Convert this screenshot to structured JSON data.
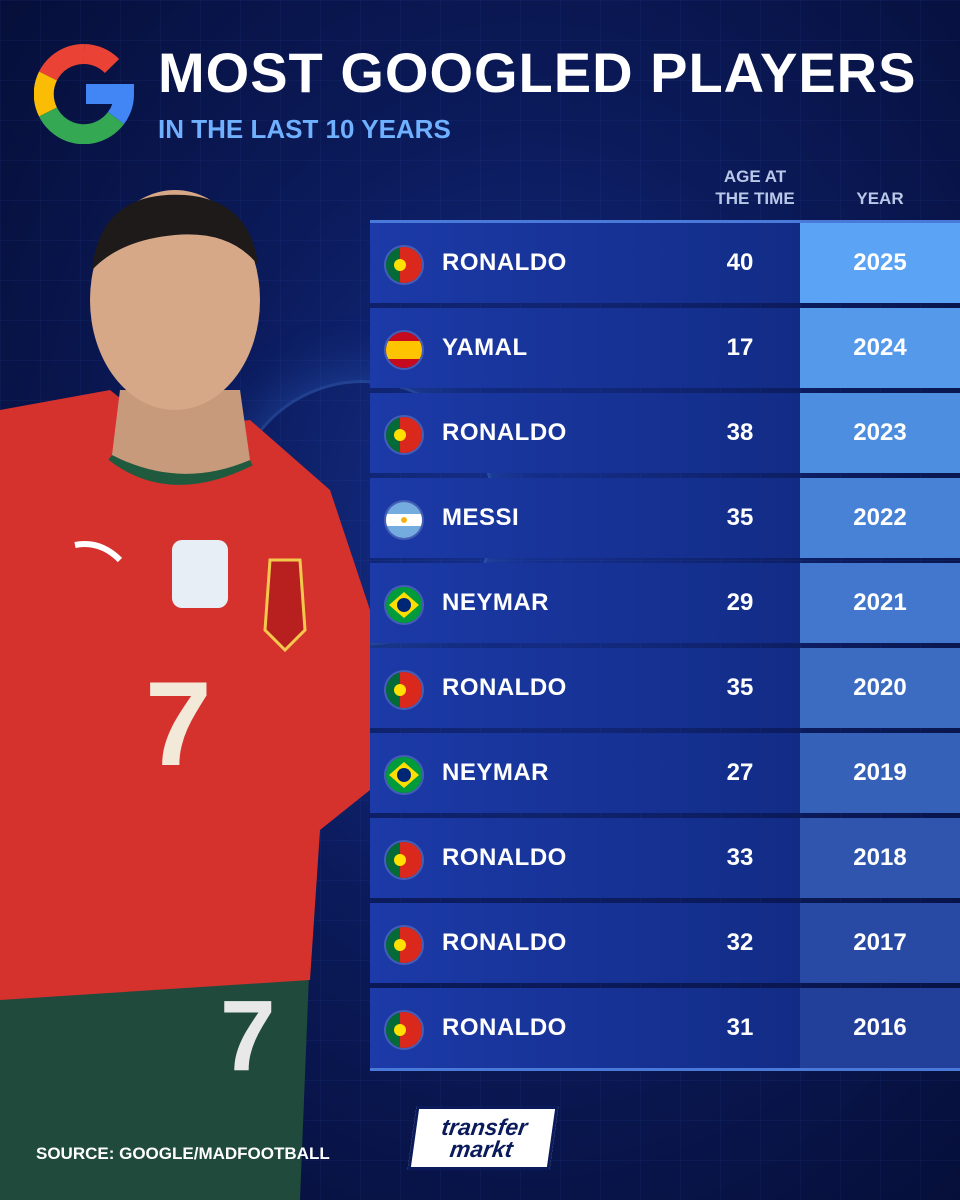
{
  "header": {
    "title": "MOST GOOGLED PLAYERS",
    "subtitle": "IN THE LAST 10 YEARS",
    "age_column": "AGE AT THE TIME",
    "year_column": "YEAR"
  },
  "colors": {
    "background": "#0b1a5a",
    "subtitle": "#6fb0ff",
    "row_fill": "#1c3aa8",
    "year_gradient_top": "#5ba4f5",
    "year_gradient_bottom": "#223f9a"
  },
  "rows": [
    {
      "flag": "portugal-flag-icon",
      "name": "RONALDO",
      "age": "40",
      "year": "2025"
    },
    {
      "flag": "spain-flag-icon",
      "name": "YAMAL",
      "age": "17",
      "year": "2024"
    },
    {
      "flag": "portugal-flag-icon",
      "name": "RONALDO",
      "age": "38",
      "year": "2023"
    },
    {
      "flag": "argentina-flag-icon",
      "name": "MESSI",
      "age": "35",
      "year": "2022"
    },
    {
      "flag": "brazil-flag-icon",
      "name": "NEYMAR",
      "age": "29",
      "year": "2021"
    },
    {
      "flag": "portugal-flag-icon",
      "name": "RONALDO",
      "age": "35",
      "year": "2020"
    },
    {
      "flag": "brazil-flag-icon",
      "name": "NEYMAR",
      "age": "27",
      "year": "2019"
    },
    {
      "flag": "portugal-flag-icon",
      "name": "RONALDO",
      "age": "33",
      "year": "2018"
    },
    {
      "flag": "portugal-flag-icon",
      "name": "RONALDO",
      "age": "32",
      "year": "2017"
    },
    {
      "flag": "portugal-flag-icon",
      "name": "RONALDO",
      "age": "31",
      "year": "2016"
    }
  ],
  "footer": {
    "source": "SOURCE: GOOGLE/MADFOOTBALL",
    "logo_line1": "transfer",
    "logo_line2": "markt"
  },
  "player_shirt_number": "7"
}
